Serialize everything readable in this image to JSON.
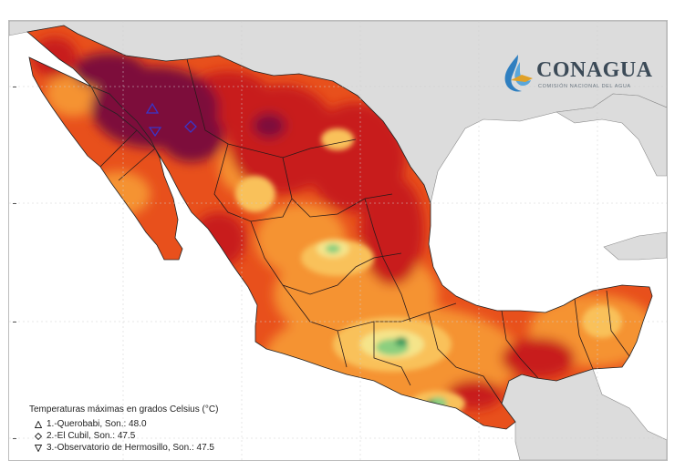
{
  "logo": {
    "name": "CONAGUA",
    "subtitle": "COMISIÓN NACIONAL DEL AGUA",
    "brand_blue": "#2f7fc0",
    "brand_orange": "#e0a128"
  },
  "legend": {
    "title": "Temperaturas máximas en grados Celsius (°C)",
    "stations": [
      {
        "marker": "triangle-up",
        "label": "1.-Querobabi, Son.: 48.0"
      },
      {
        "marker": "diamond",
        "label": "2.-El Cubil, Son.: 47.5"
      },
      {
        "marker": "triangle-down",
        "label": "3.-Observatorio de Hermosillo, Son.: 47.5"
      }
    ]
  },
  "colors": {
    "ocean": "#ffffff",
    "neighbor_land": "#dcdcdc",
    "extreme": "#7d0f3a",
    "very_hot": "#c81a1f",
    "hot": "#e8501c",
    "warm": "#f59331",
    "mild": "#f9c15a",
    "pale": "#f5e48a",
    "cool": "#8ccf7f",
    "cooler": "#3b9b5e",
    "marker": "#3a35c8"
  }
}
